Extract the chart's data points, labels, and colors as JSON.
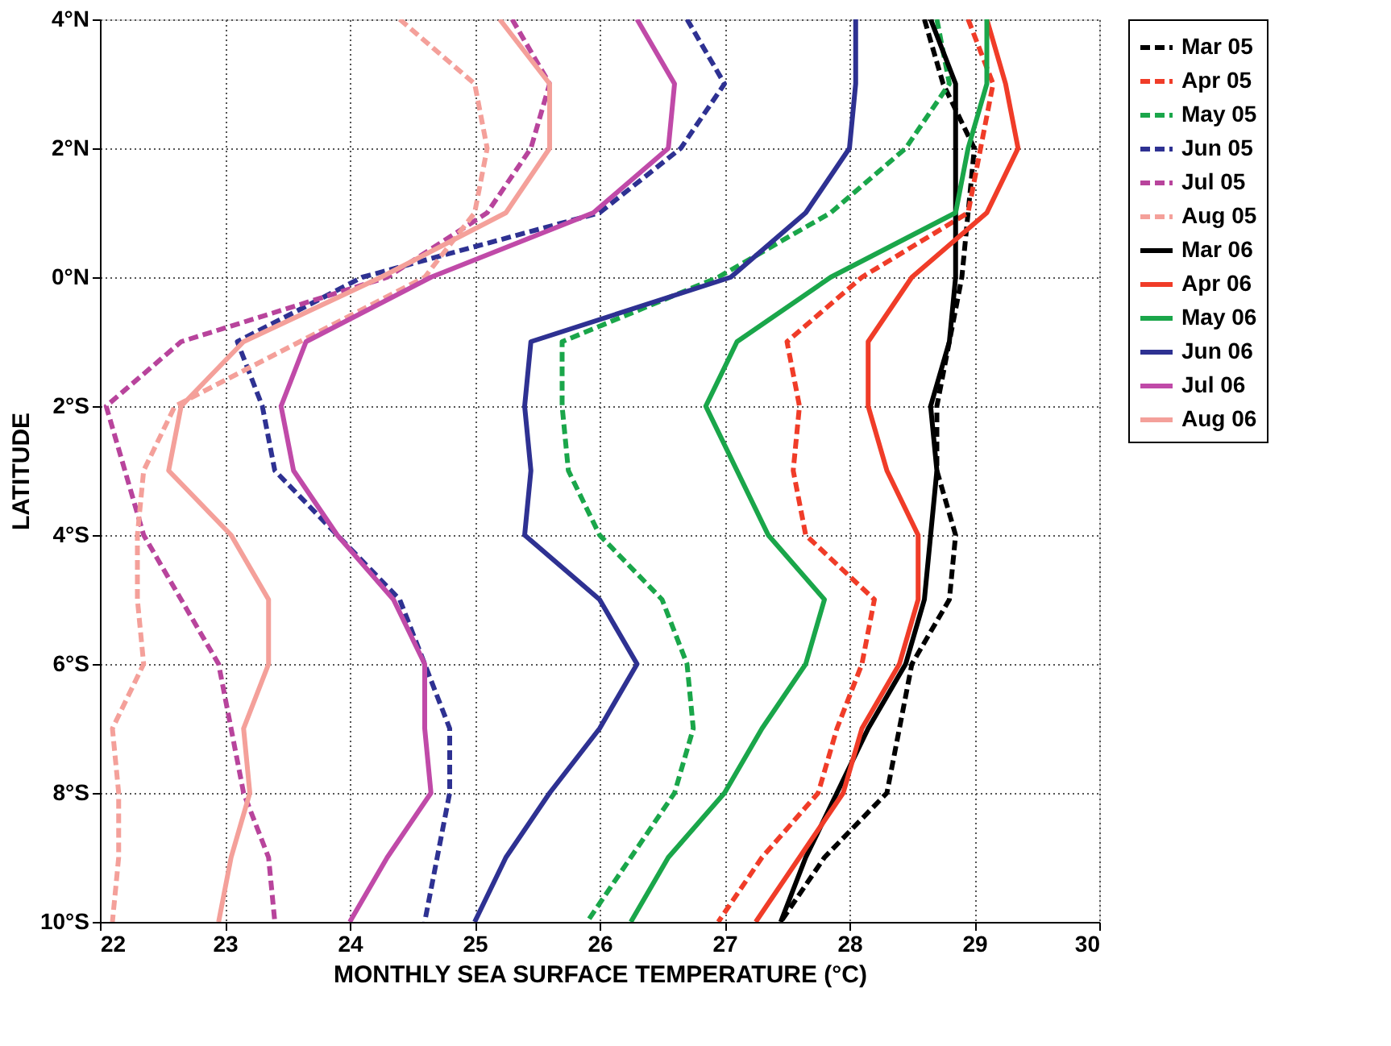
{
  "chart_data": {
    "type": "line",
    "xlabel": "MONTHLY SEA SURFACE TEMPERATURE (°C)",
    "ylabel": "LATITUDE",
    "xlim": [
      22,
      30
    ],
    "xticks": [
      22,
      23,
      24,
      25,
      26,
      27,
      28,
      29,
      30
    ],
    "ylim": [
      -10,
      4
    ],
    "yticks": [
      {
        "value": -10,
        "label": "10°S"
      },
      {
        "value": -8,
        "label": "8°S"
      },
      {
        "value": -6,
        "label": "6°S"
      },
      {
        "value": -4,
        "label": "4°S"
      },
      {
        "value": -2,
        "label": "2°S"
      },
      {
        "value": 0,
        "label": "0°N"
      },
      {
        "value": 2,
        "label": "2°N"
      },
      {
        "value": 4,
        "label": "4°N"
      }
    ],
    "grid": true,
    "legend": "right",
    "marker": "none",
    "series": [
      {
        "name": "Mar 05",
        "color": "#000000",
        "line_style": "dashed",
        "x": [
          28.6,
          28.75,
          29.0,
          28.95,
          28.9,
          28.8,
          28.7,
          28.7,
          28.85,
          28.8,
          28.5,
          28.4,
          28.3,
          27.8,
          27.45
        ],
        "values": [
          4,
          3,
          2,
          1,
          0,
          -1,
          -2,
          -3,
          -4,
          -5,
          -6,
          -7,
          -8,
          -9,
          -10
        ]
      },
      {
        "name": "Apr 05",
        "color": "#f03c28",
        "line_style": "dashed",
        "x": [
          28.95,
          29.15,
          29.05,
          28.95,
          28.1,
          27.5,
          27.6,
          27.55,
          27.65,
          28.2,
          28.1,
          27.9,
          27.75,
          27.3,
          26.95
        ],
        "values": [
          4,
          3,
          2,
          1,
          0,
          -1,
          -2,
          -3,
          -4,
          -5,
          -6,
          -7,
          -8,
          -9,
          -10
        ]
      },
      {
        "name": "May 05",
        "color": "#1aa64a",
        "line_style": "dashed",
        "x": [
          28.7,
          28.8,
          28.45,
          27.85,
          26.95,
          25.7,
          25.7,
          25.75,
          26.0,
          26.5,
          26.7,
          26.75,
          26.6,
          26.25,
          25.9
        ],
        "values": [
          4,
          3,
          2,
          1,
          0,
          -1,
          -2,
          -3,
          -4,
          -5,
          -6,
          -7,
          -8,
          -9,
          -10
        ]
      },
      {
        "name": "Jun 05",
        "color": "#2e3192",
        "line_style": "dashed",
        "x": [
          26.7,
          27.0,
          26.65,
          26.0,
          24.1,
          23.1,
          23.3,
          23.4,
          23.9,
          24.4,
          24.6,
          24.8,
          24.8,
          24.7,
          24.6
        ],
        "values": [
          4,
          3,
          2,
          1,
          0,
          -1,
          -2,
          -3,
          -4,
          -5,
          -6,
          -7,
          -8,
          -9,
          -10
        ]
      },
      {
        "name": "Jul 05",
        "color": "#b8449c",
        "line_style": "dashed",
        "x": [
          25.3,
          25.6,
          25.45,
          25.1,
          24.3,
          22.65,
          22.05,
          22.2,
          22.35,
          22.65,
          22.95,
          23.05,
          23.15,
          23.35,
          23.4
        ],
        "values": [
          4,
          3,
          2,
          1,
          0,
          -1,
          -2,
          -3,
          -4,
          -5,
          -6,
          -7,
          -8,
          -9,
          -10
        ]
      },
      {
        "name": "Aug 05",
        "color": "#f4a09a",
        "line_style": "dashed",
        "x": [
          24.4,
          25.0,
          25.1,
          25.0,
          24.6,
          23.6,
          22.6,
          22.35,
          22.3,
          22.3,
          22.35,
          22.1,
          22.15,
          22.15,
          22.1
        ],
        "values": [
          4,
          3,
          2,
          1,
          0,
          -1,
          -2,
          -3,
          -4,
          -5,
          -6,
          -7,
          -8,
          -9,
          -10
        ]
      },
      {
        "name": "Mar 06",
        "color": "#000000",
        "line_style": "solid",
        "x": [
          28.65,
          28.85,
          28.85,
          28.85,
          28.85,
          28.8,
          28.65,
          28.7,
          28.65,
          28.6,
          28.45,
          28.15,
          27.9,
          27.65,
          27.45
        ],
        "values": [
          4,
          3,
          2,
          1,
          0,
          -1,
          -2,
          -3,
          -4,
          -5,
          -6,
          -7,
          -8,
          -9,
          -10
        ]
      },
      {
        "name": "Apr 06",
        "color": "#f03c28",
        "line_style": "solid",
        "x": [
          29.1,
          29.25,
          29.35,
          29.1,
          28.5,
          28.15,
          28.15,
          28.3,
          28.55,
          28.55,
          28.4,
          28.1,
          27.95,
          27.6,
          27.25
        ],
        "values": [
          4,
          3,
          2,
          1,
          0,
          -1,
          -2,
          -3,
          -4,
          -5,
          -6,
          -7,
          -8,
          -9,
          -10
        ]
      },
      {
        "name": "May 06",
        "color": "#1aa64a",
        "line_style": "solid",
        "x": [
          29.1,
          29.1,
          28.95,
          28.85,
          27.85,
          27.1,
          26.85,
          27.1,
          27.35,
          27.8,
          27.65,
          27.3,
          27.0,
          26.55,
          26.25
        ],
        "values": [
          4,
          3,
          2,
          1,
          0,
          -1,
          -2,
          -3,
          -4,
          -5,
          -6,
          -7,
          -8,
          -9,
          -10
        ]
      },
      {
        "name": "Jun 06",
        "color": "#2e3192",
        "line_style": "solid",
        "x": [
          28.05,
          28.05,
          28.0,
          27.65,
          27.05,
          25.45,
          25.4,
          25.45,
          25.4,
          26.0,
          26.3,
          26.0,
          25.6,
          25.25,
          25.0
        ],
        "values": [
          4,
          3,
          2,
          1,
          0,
          -1,
          -2,
          -3,
          -4,
          -5,
          -6,
          -7,
          -8,
          -9,
          -10
        ]
      },
      {
        "name": "Jul 06",
        "color": "#c04aa8",
        "line_style": "solid",
        "x": [
          26.3,
          26.6,
          26.55,
          25.95,
          24.65,
          23.65,
          23.45,
          23.55,
          23.9,
          24.35,
          24.6,
          24.6,
          24.65,
          24.3,
          24.0
        ],
        "values": [
          4,
          3,
          2,
          1,
          0,
          -1,
          -2,
          -3,
          -4,
          -5,
          -6,
          -7,
          -8,
          -9,
          -10
        ]
      },
      {
        "name": "Aug 06",
        "color": "#f4a09a",
        "line_style": "solid",
        "x": [
          25.2,
          25.6,
          25.6,
          25.25,
          24.25,
          23.15,
          22.65,
          22.55,
          23.05,
          23.35,
          23.35,
          23.15,
          23.2,
          23.05,
          22.95
        ],
        "values": [
          4,
          3,
          2,
          1,
          0,
          -1,
          -2,
          -3,
          -4,
          -5,
          -6,
          -7,
          -8,
          -9,
          -10
        ]
      }
    ]
  }
}
